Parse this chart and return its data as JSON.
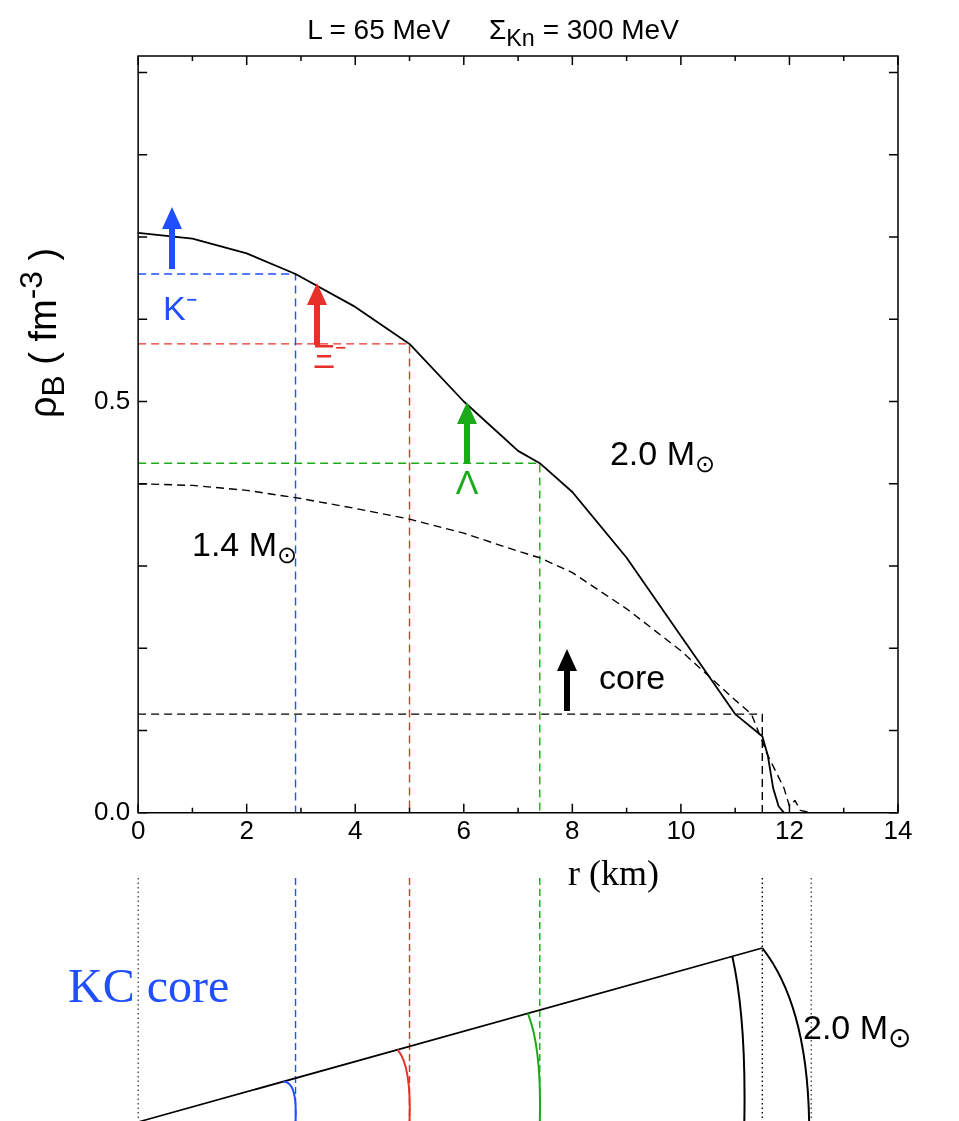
{
  "chart_data": {
    "type": "line",
    "title": "L = 65 MeV     Σ$_{Kn}$ = 300 MeV",
    "xlabel": "r (km)",
    "ylabel": "ρ$_{B}$ ( fm$^{-3}$ )",
    "xlim": [
      0,
      14
    ],
    "ylim": [
      0,
      0.92
    ],
    "xticks": [
      0,
      {
        "value": 1,
        "label": null
      },
      2,
      {
        "value": 3,
        "label": null
      },
      4,
      {
        "value": 5,
        "label": null
      },
      6,
      {
        "value": 7,
        "label": null
      },
      8,
      {
        "value": 9,
        "label": null
      },
      10,
      {
        "value": 11,
        "label": null
      },
      12,
      {
        "value": 13,
        "label": null
      },
      14
    ],
    "yticks": [
      {
        "value": 0,
        "label": "0.0"
      },
      {
        "value": 0.1,
        "label": null
      },
      {
        "value": 0.2,
        "label": null
      },
      {
        "value": 0.3,
        "label": null
      },
      {
        "value": 0.4,
        "label": null
      },
      {
        "value": 0.5,
        "label": "0.5"
      },
      {
        "value": 0.6,
        "label": null
      },
      {
        "value": 0.7,
        "label": null
      },
      {
        "value": 0.8,
        "label": null
      },
      {
        "value": 0.9,
        "label": null
      }
    ],
    "grid": false,
    "legend": false,
    "marker": "none",
    "series": [
      {
        "color": "#000000",
        "line_style": "solid",
        "x": [
          0,
          1,
          2,
          2.9,
          4,
          5,
          6,
          7,
          7.4,
          8,
          9,
          10,
          11,
          11.5,
          11.6,
          11.7,
          11.8,
          11.9,
          12.5,
          13
        ],
        "values": [
          0.705,
          0.698,
          0.68,
          0.655,
          0.615,
          0.57,
          0.5,
          0.44,
          0.425,
          0.39,
          0.31,
          0.215,
          0.12,
          0.093,
          0.07,
          0.03,
          0.008,
          0,
          0,
          0
        ]
      },
      {
        "color": "#000000",
        "line_style": "dashed",
        "x": [
          0,
          1,
          2,
          3,
          4,
          5,
          6,
          7,
          7.4,
          8,
          9,
          10,
          11,
          11.3,
          11.6,
          11.9,
          12,
          12.1,
          12.2,
          12.4
        ],
        "values": [
          0.4,
          0.398,
          0.392,
          0.382,
          0.37,
          0.357,
          0.34,
          0.318,
          0.31,
          0.292,
          0.248,
          0.197,
          0.137,
          0.12,
          0.07,
          0.03,
          0.008,
          0.015,
          0.003,
          0
        ]
      },
      {
        "color": "#1f4fff",
        "line_style": "dashed",
        "x": [
          0,
          2.9,
          2.9
        ],
        "values": [
          0.655,
          0.655,
          0
        ]
      },
      {
        "color": "#e8302a",
        "line_style": "dashed",
        "x": [
          0,
          5,
          5
        ],
        "values": [
          0.57,
          0.57,
          0
        ]
      },
      {
        "color": "#1aaa1a",
        "line_style": "dashed",
        "x": [
          0,
          7.4,
          7.4
        ],
        "values": [
          0.425,
          0.425,
          0
        ]
      },
      {
        "color": "#000000",
        "line_style": "dashed",
        "x": [
          0,
          11.5,
          11.5
        ],
        "values": [
          0.12,
          0.12,
          0
        ]
      }
    ],
    "annotations": [
      "K⁻",
      "Ξ⁻",
      "Λ",
      "core",
      "2.0 M$_{⊙}$",
      "1.4 M$_{⊙}$",
      "KC core",
      "2.0 M$_{⊙}$"
    ]
  }
}
